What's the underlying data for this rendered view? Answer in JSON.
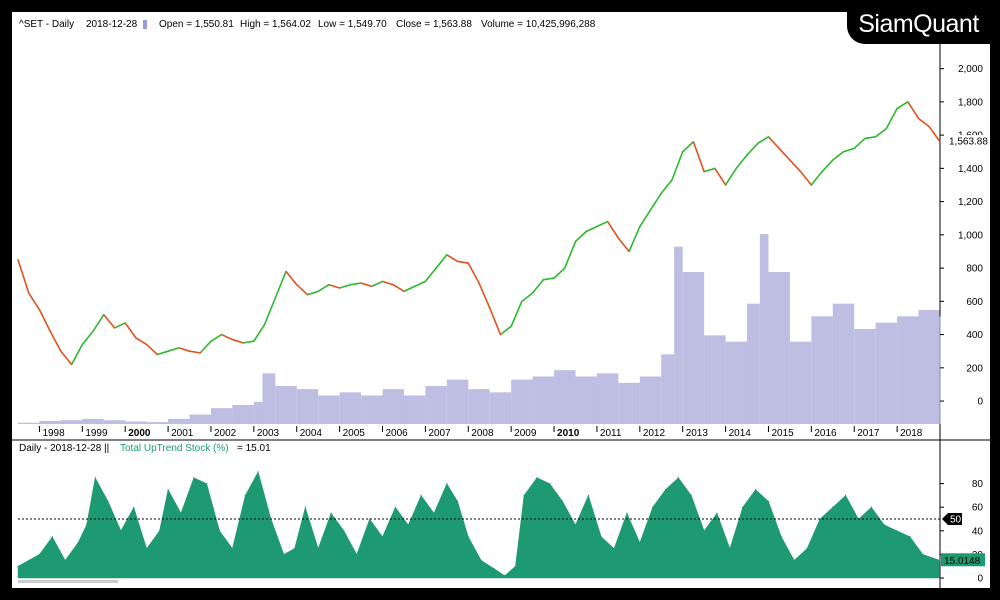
{
  "logo_text": "SiamQuant",
  "price_header": {
    "symbol": "^SET - Daily",
    "date": "2018-12-28",
    "open": "Open = 1,550.81",
    "high": "High = 1,564.02",
    "low": "Low = 1,549.70",
    "close": "Close = 1,563.88",
    "volume": "Volume = 10,425,996,288"
  },
  "indicator_header": {
    "prefix": "Daily - 2018-12-28 ||",
    "name": "Total UpTrend Stock (%)",
    "value": "= 15.01"
  },
  "colors": {
    "up": "#2db82d",
    "down": "#e0521f",
    "volume": "#b3b3dd",
    "indicator": "#1e9a72",
    "indicator_value_box": "#1e9a72",
    "ref_box": "#000000"
  },
  "chart_data": [
    {
      "type": "line",
      "title": "^SET - Daily",
      "x": [
        1997.5,
        1997.75,
        1998.0,
        1998.25,
        1998.5,
        1998.75,
        1999.0,
        1999.25,
        1999.5,
        1999.75,
        2000.0,
        2000.25,
        2000.5,
        2000.75,
        2001.0,
        2001.25,
        2001.5,
        2001.75,
        2002.0,
        2002.25,
        2002.5,
        2002.75,
        2003.0,
        2003.25,
        2003.5,
        2003.75,
        2004.0,
        2004.25,
        2004.5,
        2004.75,
        2005.0,
        2005.25,
        2005.5,
        2005.75,
        2006.0,
        2006.25,
        2006.5,
        2006.75,
        2007.0,
        2007.25,
        2007.5,
        2007.75,
        2008.0,
        2008.25,
        2008.5,
        2008.75,
        2009.0,
        2009.25,
        2009.5,
        2009.75,
        2010.0,
        2010.25,
        2010.5,
        2010.75,
        2011.0,
        2011.25,
        2011.5,
        2011.75,
        2012.0,
        2012.25,
        2012.5,
        2012.75,
        2013.0,
        2013.25,
        2013.5,
        2013.75,
        2014.0,
        2014.25,
        2014.5,
        2014.75,
        2015.0,
        2015.25,
        2015.5,
        2015.75,
        2016.0,
        2016.25,
        2016.5,
        2016.75,
        2017.0,
        2017.25,
        2017.5,
        2017.75,
        2018.0,
        2018.25,
        2018.5,
        2018.75,
        2018.99
      ],
      "values": [
        850,
        650,
        550,
        420,
        300,
        220,
        340,
        420,
        520,
        440,
        470,
        380,
        340,
        280,
        300,
        320,
        300,
        290,
        360,
        400,
        370,
        350,
        360,
        460,
        620,
        780,
        700,
        640,
        660,
        700,
        680,
        700,
        710,
        690,
        720,
        700,
        660,
        690,
        720,
        800,
        880,
        840,
        830,
        710,
        560,
        400,
        450,
        600,
        650,
        730,
        740,
        800,
        960,
        1020,
        1050,
        1080,
        980,
        900,
        1050,
        1150,
        1250,
        1330,
        1500,
        1560,
        1380,
        1400,
        1300,
        1400,
        1480,
        1550,
        1590,
        1520,
        1450,
        1380,
        1300,
        1380,
        1450,
        1500,
        1520,
        1580,
        1590,
        1640,
        1760,
        1800,
        1700,
        1650,
        1563.88
      ],
      "ylabel": "",
      "ylim": [
        -150,
        2100
      ],
      "yticks": [
        0,
        200,
        400,
        600,
        800,
        1000,
        1200,
        1400,
        1600,
        1800,
        2000
      ],
      "ytick_labels": [
        "0",
        "200",
        "400",
        "600",
        "800",
        "1,000",
        "1,200",
        "1,400",
        "1,600",
        "1,800",
        "2,000"
      ],
      "last_value_label": "1,563.88",
      "xticks": [
        {
          "year": 1998,
          "label": "1998",
          "bold": false
        },
        {
          "year": 1999,
          "label": "1999",
          "bold": false
        },
        {
          "year": 2000,
          "label": "2000",
          "bold": true
        },
        {
          "year": 2001,
          "label": "2001",
          "bold": false
        },
        {
          "year": 2002,
          "label": "2002",
          "bold": false
        },
        {
          "year": 2003,
          "label": "2003",
          "bold": false
        },
        {
          "year": 2004,
          "label": "2004",
          "bold": false
        },
        {
          "year": 2005,
          "label": "2005",
          "bold": false
        },
        {
          "year": 2006,
          "label": "2006",
          "bold": false
        },
        {
          "year": 2007,
          "label": "2007",
          "bold": false
        },
        {
          "year": 2008,
          "label": "2008",
          "bold": false
        },
        {
          "year": 2009,
          "label": "2009",
          "bold": false
        },
        {
          "year": 2010,
          "label": "2010",
          "bold": true
        },
        {
          "year": 2011,
          "label": "2011",
          "bold": false
        },
        {
          "year": 2012,
          "label": "2012",
          "bold": false
        },
        {
          "year": 2013,
          "label": "2013",
          "bold": false
        },
        {
          "year": 2014,
          "label": "2014",
          "bold": false
        },
        {
          "year": 2015,
          "label": "2015",
          "bold": false
        },
        {
          "year": 2016,
          "label": "2016",
          "bold": false
        },
        {
          "year": 2017,
          "label": "2017",
          "bold": false
        },
        {
          "year": 2018,
          "label": "2018",
          "bold": false
        }
      ],
      "xlim": [
        1997.5,
        2019.0
      ],
      "volume": {
        "x": [
          1997.5,
          1998.0,
          1998.5,
          1999.0,
          1999.5,
          2000.0,
          2000.5,
          2001.0,
          2001.5,
          2002.0,
          2002.5,
          2003.0,
          2003.2,
          2003.5,
          2004.0,
          2004.5,
          2005.0,
          2005.5,
          2006.0,
          2006.5,
          2007.0,
          2007.5,
          2008.0,
          2008.5,
          2009.0,
          2009.5,
          2010.0,
          2010.5,
          2011.0,
          2011.5,
          2012.0,
          2012.5,
          2012.8,
          2013.0,
          2013.5,
          2014.0,
          2014.5,
          2014.8,
          2015.0,
          2015.5,
          2016.0,
          2016.5,
          2017.0,
          2017.5,
          2018.0,
          2018.5,
          2018.99
        ],
        "values": [
          2,
          5,
          6,
          8,
          6,
          4,
          3,
          8,
          15,
          25,
          30,
          35,
          80,
          60,
          55,
          45,
          50,
          45,
          55,
          45,
          60,
          70,
          55,
          50,
          70,
          75,
          85,
          75,
          80,
          65,
          75,
          110,
          280,
          240,
          140,
          130,
          190,
          300,
          240,
          130,
          170,
          190,
          150,
          160,
          170,
          180,
          170
        ]
      }
    },
    {
      "type": "area",
      "title": "Total UpTrend Stock (%)",
      "x": [
        1997.5,
        1997.75,
        1998.0,
        1998.3,
        1998.6,
        1998.9,
        1999.1,
        1999.3,
        1999.6,
        1999.9,
        2000.2,
        2000.5,
        2000.8,
        2001.0,
        2001.3,
        2001.6,
        2001.9,
        2002.2,
        2002.5,
        2002.8,
        2003.1,
        2003.4,
        2003.7,
        2003.95,
        2004.2,
        2004.5,
        2004.8,
        2005.1,
        2005.4,
        2005.7,
        2006.0,
        2006.3,
        2006.6,
        2006.9,
        2007.2,
        2007.5,
        2007.75,
        2008.0,
        2008.3,
        2008.6,
        2008.85,
        2009.1,
        2009.3,
        2009.6,
        2009.9,
        2010.2,
        2010.5,
        2010.8,
        2011.1,
        2011.4,
        2011.7,
        2012.0,
        2012.3,
        2012.6,
        2012.9,
        2013.2,
        2013.5,
        2013.8,
        2014.1,
        2014.4,
        2014.7,
        2015.0,
        2015.3,
        2015.6,
        2015.9,
        2016.2,
        2016.5,
        2016.8,
        2017.1,
        2017.4,
        2017.7,
        2018.0,
        2018.3,
        2018.6,
        2018.99
      ],
      "values": [
        10,
        15,
        20,
        35,
        15,
        30,
        45,
        85,
        65,
        40,
        60,
        25,
        40,
        75,
        55,
        85,
        80,
        40,
        25,
        70,
        90,
        50,
        20,
        25,
        60,
        25,
        55,
        40,
        20,
        50,
        35,
        60,
        45,
        70,
        55,
        80,
        65,
        35,
        15,
        8,
        2,
        10,
        70,
        85,
        80,
        65,
        45,
        70,
        35,
        25,
        55,
        30,
        60,
        75,
        85,
        70,
        40,
        55,
        25,
        60,
        75,
        65,
        35,
        15,
        25,
        50,
        60,
        70,
        50,
        60,
        45,
        40,
        35,
        20,
        15.01
      ],
      "ylim": [
        0,
        100
      ],
      "yticks": [
        0,
        20,
        40,
        60,
        80
      ],
      "ytick_labels": [
        "0",
        "20",
        "40",
        "60",
        "80"
      ],
      "reference_line": 50,
      "reference_label": "50",
      "last_value_label": "15.0148"
    }
  ]
}
